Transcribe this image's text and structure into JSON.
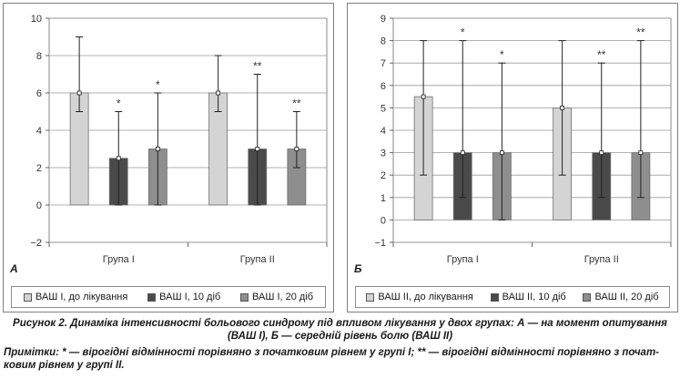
{
  "chart_data": [
    {
      "type": "bar",
      "panel_letter": "А",
      "categories": [
        "Група I",
        "Група II"
      ],
      "ylim": [
        -2,
        10
      ],
      "yticks": [
        -2,
        0,
        2,
        4,
        6,
        8,
        10
      ],
      "grid": true,
      "series": [
        {
          "name": "ВАШ І, до лікування",
          "color": "#d4d4d4",
          "values": [
            6,
            6
          ],
          "err_low": [
            5,
            5
          ],
          "err_high": [
            9,
            8
          ],
          "stars": [
            "",
            ""
          ]
        },
        {
          "name": "ВАШ І, 10 діб",
          "color": "#4a4a4a",
          "values": [
            2.5,
            3
          ],
          "err_low": [
            0,
            0
          ],
          "err_high": [
            5,
            7
          ],
          "stars": [
            "*",
            "**"
          ]
        },
        {
          "name": "ВАШ І, 20 діб",
          "color": "#8e8e8e",
          "values": [
            3,
            3
          ],
          "err_low": [
            0,
            2
          ],
          "err_high": [
            6,
            5
          ],
          "stars": [
            "*",
            "**"
          ]
        }
      ]
    },
    {
      "type": "bar",
      "panel_letter": "Б",
      "categories": [
        "Група I",
        "Група II"
      ],
      "ylim": [
        -1,
        9
      ],
      "yticks": [
        -1,
        0,
        1,
        2,
        3,
        4,
        5,
        6,
        7,
        8,
        9
      ],
      "grid": true,
      "series": [
        {
          "name": "ВАШ ІІ, до лікування",
          "color": "#d4d4d4",
          "values": [
            5.5,
            5
          ],
          "err_low": [
            2,
            2
          ],
          "err_high": [
            8,
            8
          ],
          "stars": [
            "",
            ""
          ]
        },
        {
          "name": "ВАШ ІІ, 10 діб",
          "color": "#4a4a4a",
          "values": [
            3,
            3
          ],
          "err_low": [
            1,
            1
          ],
          "err_high": [
            8,
            7
          ],
          "stars": [
            "*",
            "**"
          ]
        },
        {
          "name": "ВАШ ІІ, 20 діб",
          "color": "#8e8e8e",
          "values": [
            3,
            3
          ],
          "err_low": [
            0,
            1
          ],
          "err_high": [
            7,
            8
          ],
          "stars": [
            "*",
            "**"
          ]
        }
      ]
    }
  ],
  "caption": {
    "main_line1": "Рисунок 2. Динаміка інтенсивності больового синдрому під впливом лікування у двох групах: А — на момент опитування",
    "main_line2": "(ВАШ І), Б — середній рівень болю (ВАШ ІІ)",
    "note_line1": "Примітки: * — вірогідні відмінності порівняно з початковим рівнем у групі І; ** — вірогідні відмінності порівняно з почат-",
    "note_line2": "ковим рівнем у групі ІІ."
  }
}
